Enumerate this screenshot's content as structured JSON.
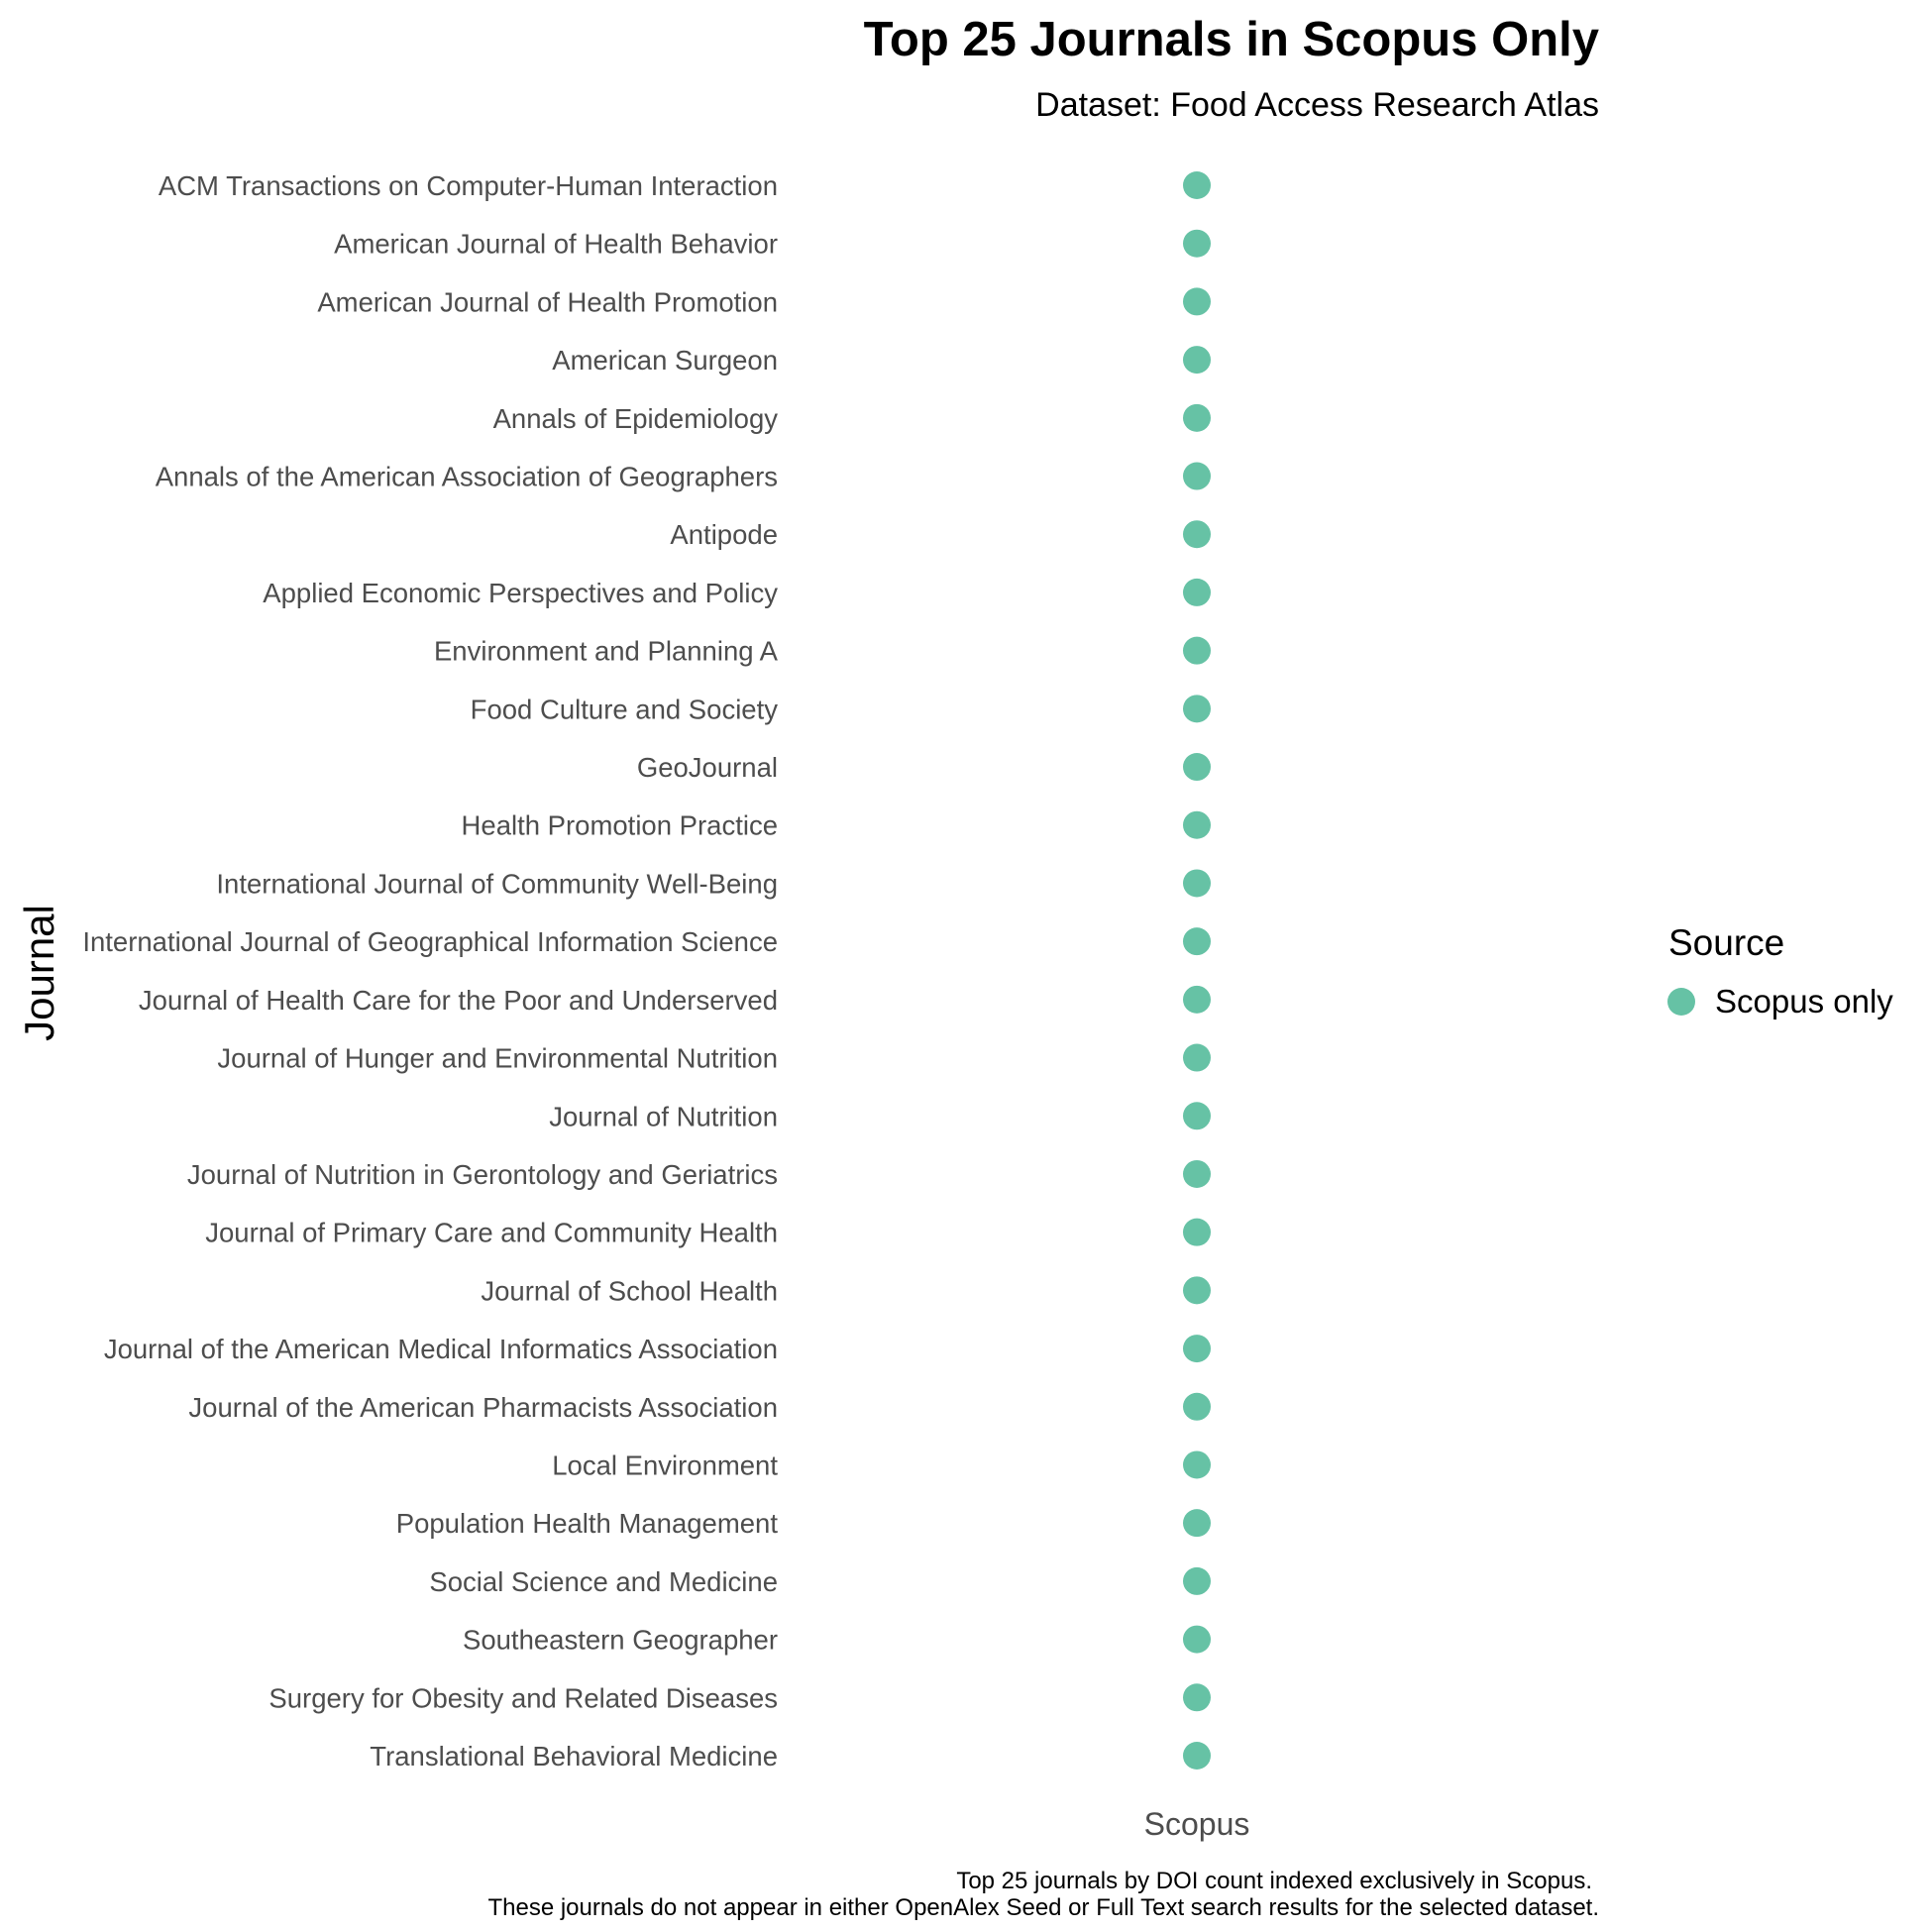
{
  "chart_data": {
    "type": "scatter",
    "title": "Top 25 Journals in Scopus Only",
    "subtitle": "Dataset: Food Access Research Atlas",
    "xlabel": "",
    "ylabel": "Journal",
    "x_categories": [
      "Scopus"
    ],
    "y_categories": [
      "ACM Transactions on Computer-Human Interaction",
      "American Journal of Health Behavior",
      "American Journal of Health Promotion",
      "American Surgeon",
      "Annals of Epidemiology",
      "Annals of the American Association of Geographers",
      "Antipode",
      "Applied Economic Perspectives and Policy",
      "Environment and Planning A",
      "Food Culture and Society",
      "GeoJournal",
      "Health Promotion Practice",
      "International Journal of Community Well-Being",
      "International Journal of Geographical Information Science",
      "Journal of Health Care for the Poor and Underserved",
      "Journal of Hunger and Environmental Nutrition",
      "Journal of Nutrition",
      "Journal of Nutrition in Gerontology and Geriatrics",
      "Journal of Primary Care and Community Health",
      "Journal of School Health",
      "Journal of the American Medical Informatics Association",
      "Journal of the American Pharmacists Association",
      "Local Environment",
      "Population Health Management",
      "Social Science and Medicine",
      "Southeastern Geographer",
      "Surgery for Obesity and Related Diseases",
      "Translational Behavioral Medicine"
    ],
    "series": [
      {
        "name": "Scopus only",
        "color": "#66c2a5",
        "points": [
          {
            "x": "Scopus",
            "y": "ACM Transactions on Computer-Human Interaction"
          },
          {
            "x": "Scopus",
            "y": "American Journal of Health Behavior"
          },
          {
            "x": "Scopus",
            "y": "American Journal of Health Promotion"
          },
          {
            "x": "Scopus",
            "y": "American Surgeon"
          },
          {
            "x": "Scopus",
            "y": "Annals of Epidemiology"
          },
          {
            "x": "Scopus",
            "y": "Annals of the American Association of Geographers"
          },
          {
            "x": "Scopus",
            "y": "Antipode"
          },
          {
            "x": "Scopus",
            "y": "Applied Economic Perspectives and Policy"
          },
          {
            "x": "Scopus",
            "y": "Environment and Planning A"
          },
          {
            "x": "Scopus",
            "y": "Food Culture and Society"
          },
          {
            "x": "Scopus",
            "y": "GeoJournal"
          },
          {
            "x": "Scopus",
            "y": "Health Promotion Practice"
          },
          {
            "x": "Scopus",
            "y": "International Journal of Community Well-Being"
          },
          {
            "x": "Scopus",
            "y": "International Journal of Geographical Information Science"
          },
          {
            "x": "Scopus",
            "y": "Journal of Health Care for the Poor and Underserved"
          },
          {
            "x": "Scopus",
            "y": "Journal of Hunger and Environmental Nutrition"
          },
          {
            "x": "Scopus",
            "y": "Journal of Nutrition"
          },
          {
            "x": "Scopus",
            "y": "Journal of Nutrition in Gerontology and Geriatrics"
          },
          {
            "x": "Scopus",
            "y": "Journal of Primary Care and Community Health"
          },
          {
            "x": "Scopus",
            "y": "Journal of School Health"
          },
          {
            "x": "Scopus",
            "y": "Journal of the American Medical Informatics Association"
          },
          {
            "x": "Scopus",
            "y": "Journal of the American Pharmacists Association"
          },
          {
            "x": "Scopus",
            "y": "Local Environment"
          },
          {
            "x": "Scopus",
            "y": "Population Health Management"
          },
          {
            "x": "Scopus",
            "y": "Social Science and Medicine"
          },
          {
            "x": "Scopus",
            "y": "Southeastern Geographer"
          },
          {
            "x": "Scopus",
            "y": "Surgery for Obesity and Related Diseases"
          },
          {
            "x": "Scopus",
            "y": "Translational Behavioral Medicine"
          }
        ]
      }
    ],
    "legend": {
      "title": "Source",
      "position": "right",
      "entries": [
        {
          "label": "Scopus only",
          "color": "#66c2a5"
        }
      ]
    },
    "caption": [
      "Top 25 journals by DOI count indexed exclusively in Scopus.",
      "These journals do not appear in either OpenAlex Seed or Full Text search results for the selected dataset."
    ],
    "grid": false
  }
}
